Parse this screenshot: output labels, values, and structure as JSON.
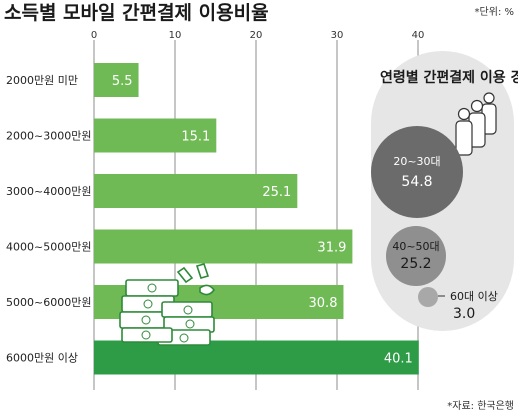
{
  "header": {
    "title": "소득별 모바일 간편결제 이용비율",
    "unit": "*단위: %"
  },
  "footer": {
    "source": "*자료: 한국은행"
  },
  "colors": {
    "bar": "#6fba55",
    "bar_highlight": "#2e9c47",
    "grid": "#8c8c8c",
    "inset_bg": "#e6e6e6",
    "bubble_large": "#6b6b6b",
    "bubble_mid": "#8f8f8f",
    "bubble_small": "#a8a8a8"
  },
  "chart_data": [
    {
      "type": "bar",
      "orientation": "horizontal",
      "title": "소득별 모바일 간편결제 이용비율",
      "unit": "%",
      "categories": [
        "2000만원 미만",
        "2000~3000만원",
        "3000~4000만원",
        "4000~5000만원",
        "5000~6000만원",
        "6000만원 이상"
      ],
      "values": [
        5.5,
        15.1,
        25.1,
        31.9,
        30.8,
        40.1
      ],
      "value_labels": [
        "5.5",
        "15.1",
        "25.1",
        "31.9",
        "30.8",
        "40.1"
      ],
      "highlight_index": 5,
      "xlim": [
        0,
        40
      ],
      "xticks": [
        0,
        10,
        20,
        30,
        40
      ],
      "grid": true,
      "icons": [
        "money-stack-icon"
      ]
    },
    {
      "type": "bubble",
      "title": "연령별 간편결제 이용 경험",
      "categories": [
        "20~30대",
        "40~50대",
        "60대 이상"
      ],
      "values": [
        54.8,
        25.2,
        3.0
      ],
      "value_labels": [
        "54.8",
        "25.2",
        "3.0"
      ],
      "icons": [
        "people-group-icon"
      ]
    }
  ]
}
